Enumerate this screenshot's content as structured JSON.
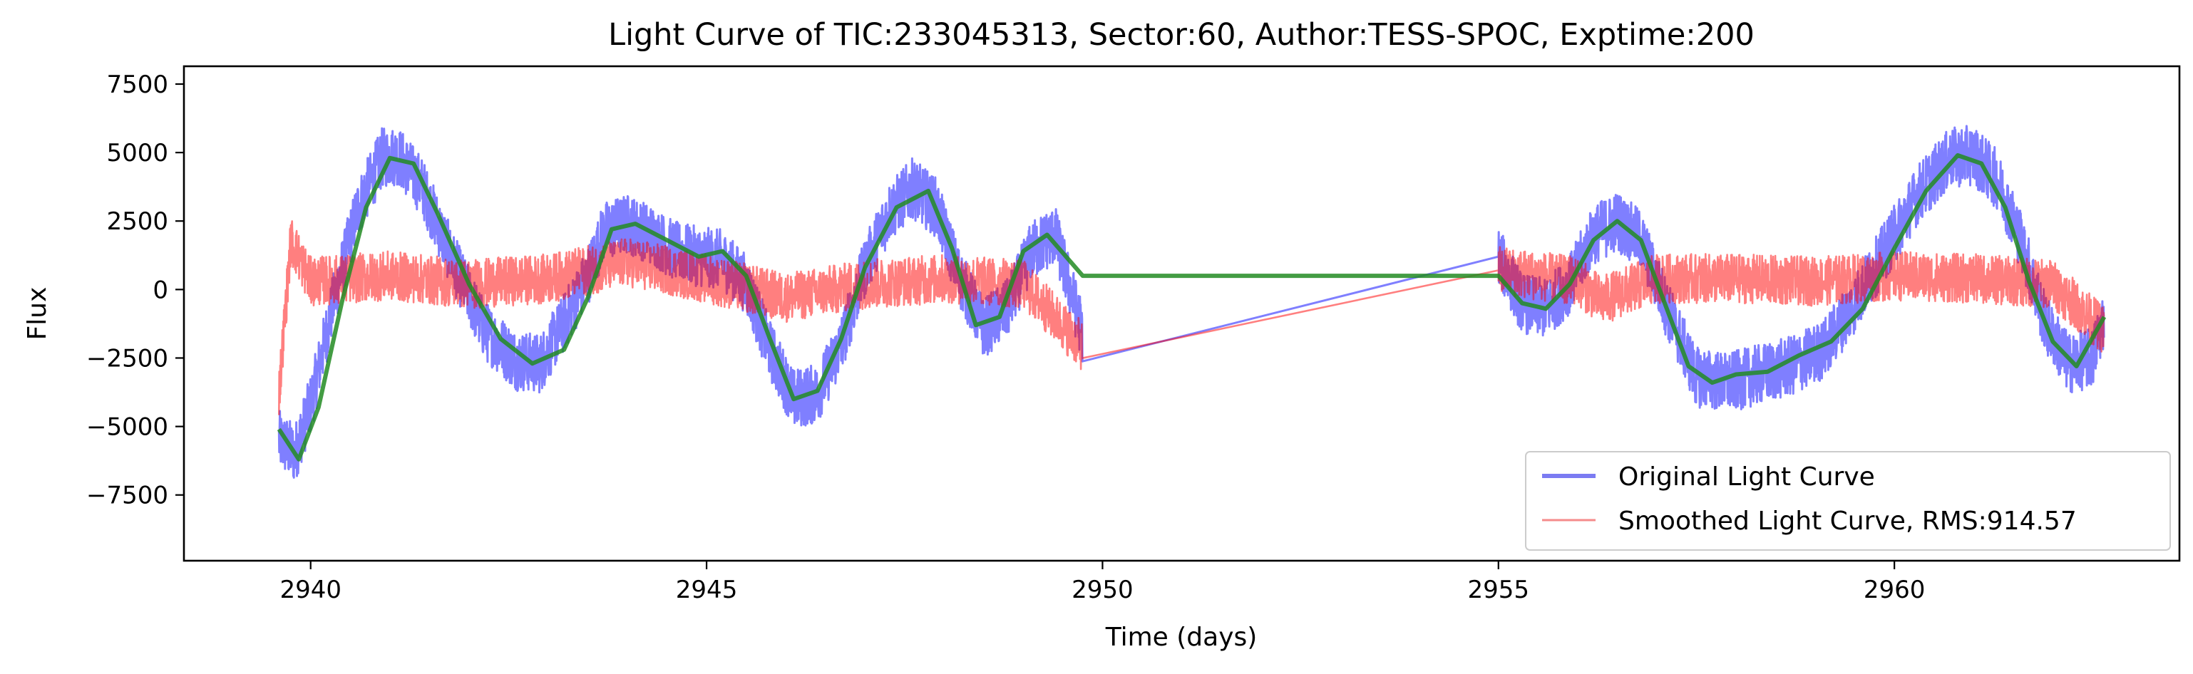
{
  "chart_data": {
    "type": "line",
    "title": "Light Curve of TIC:233045313, Sector:60, Author:TESS-SPOC, Exptime:200",
    "xlabel": "Time (days)",
    "ylabel": "Flux",
    "xlim": [
      2938.4,
      2963.6
    ],
    "ylim": [
      -9900,
      8150
    ],
    "x_ticks": [
      2940,
      2945,
      2950,
      2955,
      2960
    ],
    "y_ticks": [
      -7500,
      -5000,
      -2500,
      0,
      2500,
      5000,
      7500
    ],
    "x_tick_labels": [
      "2940",
      "2945",
      "2950",
      "2955",
      "2960"
    ],
    "y_tick_labels": [
      "−7500",
      "−5000",
      "−2500",
      "0",
      "2500",
      "5000",
      "7500"
    ],
    "grid": false,
    "legend": {
      "position": "lower-right",
      "entries": [
        {
          "label": "Original Light Curve",
          "color": "#7b7bf2"
        },
        {
          "label": "Smoothed Light Curve, RMS:914.57",
          "color": "#f58b8b"
        }
      ]
    },
    "series": [
      {
        "name": "Original Light Curve",
        "color": "#0000ff",
        "opacity": 0.5,
        "noise_amplitude": 1100,
        "x": [
          2939.6,
          2939.8,
          2940.0,
          2940.3,
          2940.6,
          2940.9,
          2941.1,
          2941.4,
          2941.8,
          2942.2,
          2942.6,
          2942.9,
          2943.2,
          2943.5,
          2943.7,
          2944.0,
          2944.3,
          2944.6,
          2944.9,
          2945.2,
          2945.5,
          2945.8,
          2946.1,
          2946.4,
          2946.7,
          2947.0,
          2947.3,
          2947.6,
          2947.9,
          2948.2,
          2948.5,
          2948.8,
          2949.1,
          2949.4,
          2949.75,
          2955.0,
          2955.3,
          2955.6,
          2955.9,
          2956.2,
          2956.5,
          2956.8,
          2957.1,
          2957.5,
          2957.9,
          2958.3,
          2958.7,
          2959.1,
          2959.5,
          2959.9,
          2960.3,
          2960.7,
          2961.0,
          2961.3,
          2961.6,
          2961.9,
          2962.2,
          2962.5,
          2962.65
        ],
        "y": [
          -5500,
          -6000,
          -4200,
          -300,
          3000,
          4800,
          4900,
          3800,
          1000,
          -1500,
          -2600,
          -2700,
          -1200,
          500,
          2100,
          2400,
          2000,
          1400,
          1200,
          1100,
          200,
          -2200,
          -4000,
          -3800,
          -2000,
          800,
          2800,
          3700,
          3000,
          400,
          -1400,
          -700,
          1400,
          2000,
          -1600,
          1200,
          -500,
          -700,
          200,
          2000,
          2500,
          1800,
          -500,
          -3200,
          -3400,
          -3100,
          -2800,
          -2200,
          -500,
          1500,
          3500,
          4800,
          4900,
          4000,
          1800,
          -1200,
          -2700,
          -2500,
          -1000
        ]
      },
      {
        "name": "Smoothed Light Curve, RMS:914.57",
        "color": "#ff0000",
        "opacity": 0.5,
        "noise_amplitude": 900,
        "x": [
          2939.6,
          2939.75,
          2940.0,
          2941.0,
          2942.0,
          2943.0,
          2944.0,
          2945.0,
          2946.0,
          2947.0,
          2948.0,
          2949.0,
          2949.75,
          2955.0,
          2956.0,
          2956.3,
          2957.0,
          2958.0,
          2959.0,
          2960.0,
          2961.0,
          2962.0,
          2962.65
        ],
        "y": [
          -3800,
          1800,
          300,
          500,
          200,
          400,
          1000,
          400,
          -300,
          200,
          400,
          200,
          -2100,
          700,
          300,
          -400,
          400,
          400,
          300,
          500,
          400,
          200,
          -1500
        ]
      },
      {
        "color": "#228b22",
        "opacity": 0.85,
        "noise_amplitude": 0,
        "x": [
          2939.6,
          2939.85,
          2940.1,
          2940.4,
          2940.7,
          2941.0,
          2941.3,
          2941.6,
          2942.0,
          2942.4,
          2942.8,
          2943.2,
          2943.5,
          2943.8,
          2944.1,
          2944.5,
          2944.9,
          2945.2,
          2945.5,
          2945.8,
          2946.1,
          2946.4,
          2946.7,
          2947.0,
          2947.4,
          2947.8,
          2948.1,
          2948.4,
          2948.7,
          2949.0,
          2949.3,
          2949.6,
          2949.75,
          2955.0,
          2955.3,
          2955.6,
          2955.9,
          2956.2,
          2956.5,
          2956.8,
          2957.1,
          2957.4,
          2957.7,
          2958.0,
          2958.4,
          2958.8,
          2959.2,
          2959.6,
          2960.0,
          2960.4,
          2960.8,
          2961.1,
          2961.4,
          2961.7,
          2962.0,
          2962.3,
          2962.65
        ],
        "y": [
          -5100,
          -6200,
          -4300,
          -400,
          3000,
          4800,
          4600,
          2800,
          200,
          -1800,
          -2700,
          -2200,
          -300,
          2200,
          2400,
          1800,
          1200,
          1400,
          500,
          -1800,
          -4000,
          -3700,
          -1800,
          800,
          3000,
          3600,
          1500,
          -1300,
          -1000,
          1400,
          2000,
          1000,
          500,
          500,
          -500,
          -700,
          200,
          1800,
          2500,
          1800,
          -500,
          -2800,
          -3400,
          -3100,
          -3000,
          -2400,
          -1900,
          -700,
          1500,
          3600,
          4900,
          4600,
          3000,
          300,
          -1900,
          -2800,
          -1000
        ]
      }
    ]
  }
}
